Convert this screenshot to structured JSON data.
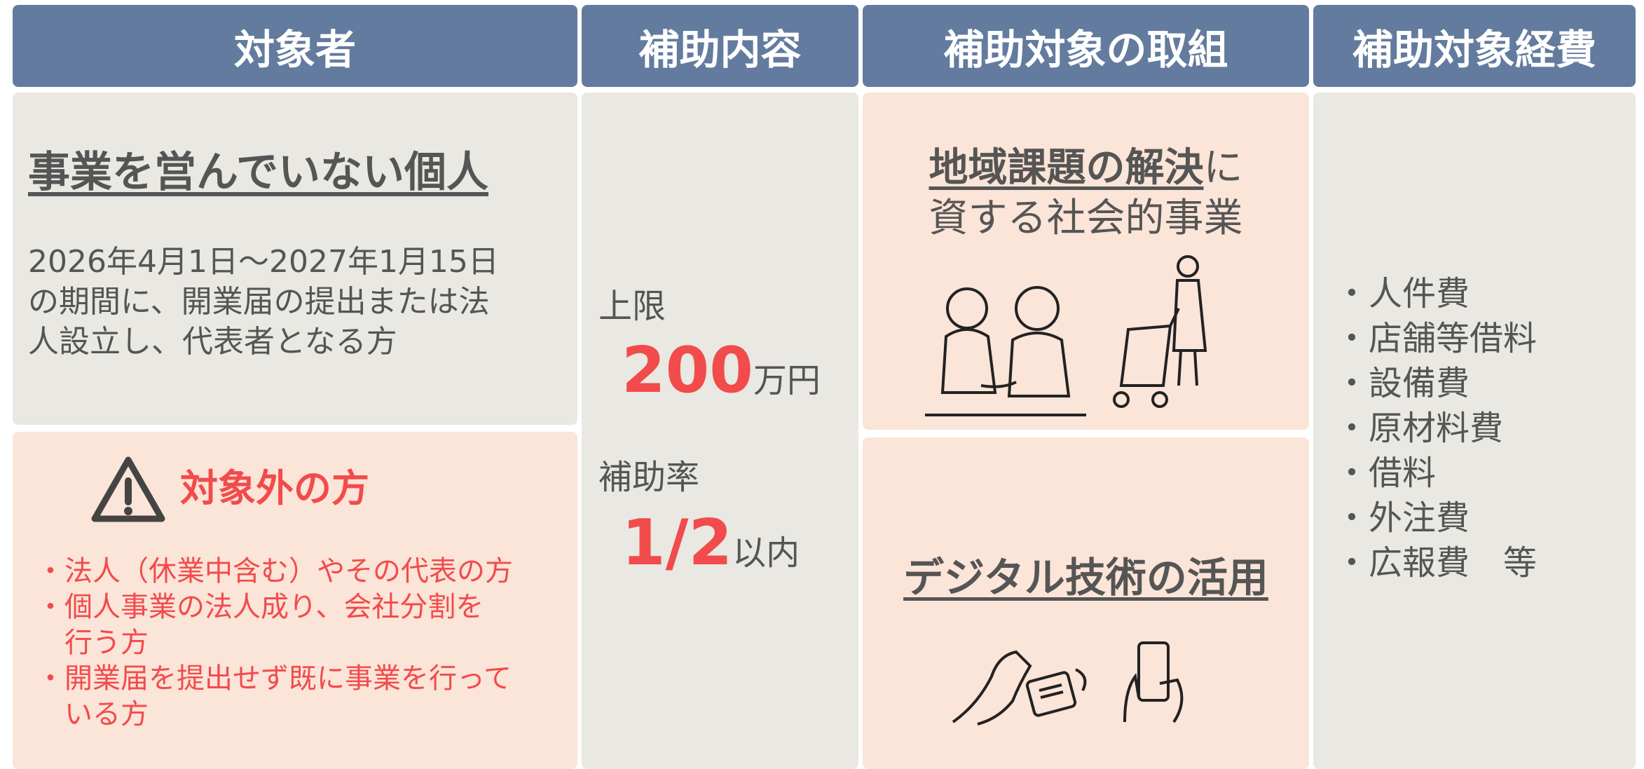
{
  "headers": [
    "対象者",
    "補助内容",
    "補助対象の取組",
    "補助対象経費"
  ],
  "target": {
    "title": "事業を営んでいない個人",
    "description": [
      "2026年4月1日～2027年1月15日",
      "の期間に、開業届の提出または法",
      "人設立し、代表者となる方"
    ],
    "excluded_title": "対象外の方",
    "excluded_items": [
      "・法人（休業中含む）やその代表の方",
      "・個人事業の法人成り、会社分割を",
      "　行う方",
      "・開業届を提出せず既に事業を行って",
      "　いる方"
    ]
  },
  "content": {
    "limit_label": "上限",
    "limit_amount": "200",
    "limit_unit": "万円",
    "rate_label": "補助率",
    "rate": "1/2",
    "rate_unit": "以内"
  },
  "initiatives": {
    "first_emphasis": "地域課題の解決",
    "first_suffix": "に",
    "first_line2": "資する社会的事業",
    "second": "デジタル技術の活用"
  },
  "expenses": [
    "・人件費",
    "・店舗等借料",
    "・設備費",
    "・原材料費",
    "・借料",
    "・外注費",
    "・広報費　等"
  ]
}
